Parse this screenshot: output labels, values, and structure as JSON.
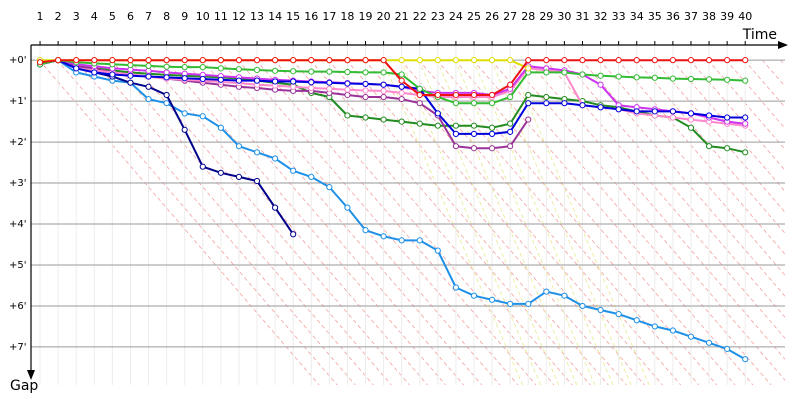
{
  "chart_data": {
    "type": "line",
    "x_label": "Time",
    "y_label": "Gap",
    "x": [
      1,
      2,
      3,
      4,
      5,
      6,
      7,
      8,
      9,
      10,
      11,
      12,
      13,
      14,
      15,
      16,
      17,
      18,
      19,
      20,
      21,
      22,
      23,
      24,
      25,
      26,
      27,
      28,
      29,
      30,
      31,
      32,
      33,
      34,
      35,
      36,
      37,
      38,
      39,
      40
    ],
    "xlim": [
      0.5,
      42.2
    ],
    "xticks": [
      1,
      2,
      3,
      4,
      5,
      6,
      7,
      8,
      9,
      10,
      11,
      12,
      13,
      14,
      15,
      16,
      17,
      18,
      19,
      20,
      21,
      22,
      23,
      24,
      25,
      26,
      27,
      28,
      29,
      30,
      31,
      32,
      33,
      34,
      35,
      36,
      37,
      38,
      39,
      40
    ],
    "ylim": [
      -0.37,
      7.93
    ],
    "y_inverted": true,
    "yticks": [
      {
        "value": 0,
        "label": "+0'"
      },
      {
        "value": 1,
        "label": "+1'"
      },
      {
        "value": 2,
        "label": "+2'"
      },
      {
        "value": 3,
        "label": "+3'"
      },
      {
        "value": 4,
        "label": "+4'"
      },
      {
        "value": 5,
        "label": "+5'"
      },
      {
        "value": 6,
        "label": "+6'"
      },
      {
        "value": 7,
        "label": "+7'"
      }
    ],
    "grid": true,
    "series": [
      {
        "color": "#1e90e8",
        "values": [
          0.1,
          0,
          0.3,
          0.4,
          0.5,
          0.55,
          0.95,
          1.05,
          1.3,
          1.37,
          1.65,
          2.1,
          2.25,
          2.4,
          2.7,
          2.85,
          3.1,
          3.6,
          4.15,
          4.3,
          4.4,
          4.4,
          4.65,
          5.55,
          5.75,
          5.85,
          5.95,
          5.95,
          5.65,
          5.75,
          6.0,
          6.1,
          6.2,
          6.35,
          6.5,
          6.6,
          6.75,
          6.9,
          7.05,
          7.3
        ]
      },
      {
        "color": "#00008b",
        "values": [
          0.1,
          0,
          0.2,
          0.3,
          0.4,
          0.55,
          0.65,
          0.85,
          1.7,
          2.6,
          2.75,
          2.85,
          2.95,
          3.6,
          4.25,
          null,
          null,
          null,
          null,
          null,
          null,
          null,
          null,
          null,
          null,
          null,
          null,
          null,
          null,
          null,
          null,
          null,
          null,
          null,
          null,
          null,
          null,
          null,
          null,
          null
        ]
      },
      {
        "color": "#228b22",
        "values": [
          0.05,
          0,
          0.15,
          0.2,
          0.25,
          0.3,
          0.33,
          0.36,
          0.38,
          0.4,
          0.42,
          0.45,
          0.5,
          0.55,
          0.6,
          0.8,
          0.9,
          1.35,
          1.4,
          1.45,
          1.5,
          1.55,
          1.6,
          1.6,
          1.6,
          1.65,
          1.55,
          0.85,
          0.9,
          0.95,
          1.0,
          1.1,
          1.15,
          1.25,
          1.35,
          1.4,
          1.65,
          2.1,
          2.15,
          2.25
        ]
      },
      {
        "color": "#993399",
        "values": [
          0.05,
          0,
          0.15,
          0.2,
          0.3,
          0.35,
          0.4,
          0.45,
          0.5,
          0.55,
          0.6,
          0.65,
          0.68,
          0.72,
          0.75,
          0.75,
          0.8,
          0.85,
          0.9,
          0.9,
          0.95,
          1.05,
          1.35,
          2.1,
          2.15,
          2.15,
          2.1,
          1.45,
          null,
          null,
          null,
          null,
          null,
          null,
          null,
          null,
          null,
          null,
          null,
          null
        ]
      },
      {
        "color": "#ff88cc",
        "values": [
          0.05,
          0,
          0.2,
          0.25,
          0.3,
          0.35,
          0.4,
          0.45,
          0.48,
          0.5,
          0.53,
          0.56,
          0.6,
          0.62,
          0.65,
          0.68,
          0.7,
          0.72,
          0.74,
          0.75,
          0.8,
          0.85,
          0.9,
          0.9,
          0.9,
          0.9,
          0.75,
          0.2,
          0.25,
          0.3,
          1.1,
          1.15,
          1.2,
          1.3,
          1.35,
          1.4,
          1.45,
          1.5,
          1.55,
          1.6
        ]
      },
      {
        "color": "#cc33ee",
        "values": [
          0.05,
          0,
          0.1,
          0.15,
          0.2,
          0.23,
          0.26,
          0.3,
          0.33,
          0.36,
          0.39,
          0.42,
          0.45,
          0.48,
          0.5,
          0.52,
          0.54,
          0.56,
          0.58,
          0.6,
          0.65,
          0.75,
          0.8,
          0.8,
          0.8,
          0.85,
          0.7,
          0.15,
          0.2,
          0.25,
          0.35,
          0.6,
          1.1,
          1.15,
          1.2,
          1.25,
          1.3,
          1.4,
          1.5,
          1.55
        ]
      },
      {
        "color": "#0000dd",
        "values": [
          0.1,
          0,
          0.2,
          0.3,
          0.35,
          0.38,
          0.4,
          0.42,
          0.44,
          0.46,
          0.48,
          0.5,
          0.5,
          0.52,
          0.52,
          0.54,
          0.55,
          0.57,
          0.58,
          0.6,
          0.65,
          0.7,
          1.3,
          1.8,
          1.8,
          1.8,
          1.75,
          1.05,
          1.05,
          1.05,
          1.1,
          1.15,
          1.2,
          1.25,
          1.25,
          1.25,
          1.3,
          1.35,
          1.4,
          1.4
        ]
      },
      {
        "color": "#33bb33",
        "values": [
          0.1,
          0,
          0.05,
          0.08,
          0.1,
          0.12,
          0.14,
          0.16,
          0.17,
          0.17,
          0.2,
          0.22,
          0.24,
          0.26,
          0.27,
          0.28,
          0.28,
          0.29,
          0.3,
          0.3,
          0.35,
          0.7,
          0.9,
          1.05,
          1.05,
          1.05,
          0.9,
          0.3,
          0.3,
          0.3,
          0.35,
          0.38,
          0.4,
          0.42,
          0.43,
          0.45,
          0.46,
          0.47,
          0.48,
          0.5
        ]
      },
      {
        "color": "#dddd00",
        "values": [
          0,
          0,
          0,
          0,
          0,
          0,
          0,
          0,
          0,
          0,
          0,
          0,
          0,
          0,
          0,
          0,
          0,
          0,
          0,
          0,
          0,
          0,
          0,
          0,
          0,
          0,
          0,
          0.2,
          null,
          null,
          null,
          null,
          null,
          null,
          null,
          null,
          null,
          null,
          null,
          null
        ]
      },
      {
        "color": "#ee1111",
        "values": [
          0.05,
          0,
          0,
          0,
          0,
          0,
          0,
          0,
          0,
          0,
          0,
          0,
          0,
          0,
          0,
          0,
          0,
          0,
          0,
          0,
          0.5,
          0.85,
          0.85,
          0.85,
          0.85,
          0.85,
          0.6,
          0,
          0,
          0,
          0,
          0,
          0,
          0,
          0,
          0,
          0,
          0,
          0,
          0
        ]
      }
    ]
  }
}
